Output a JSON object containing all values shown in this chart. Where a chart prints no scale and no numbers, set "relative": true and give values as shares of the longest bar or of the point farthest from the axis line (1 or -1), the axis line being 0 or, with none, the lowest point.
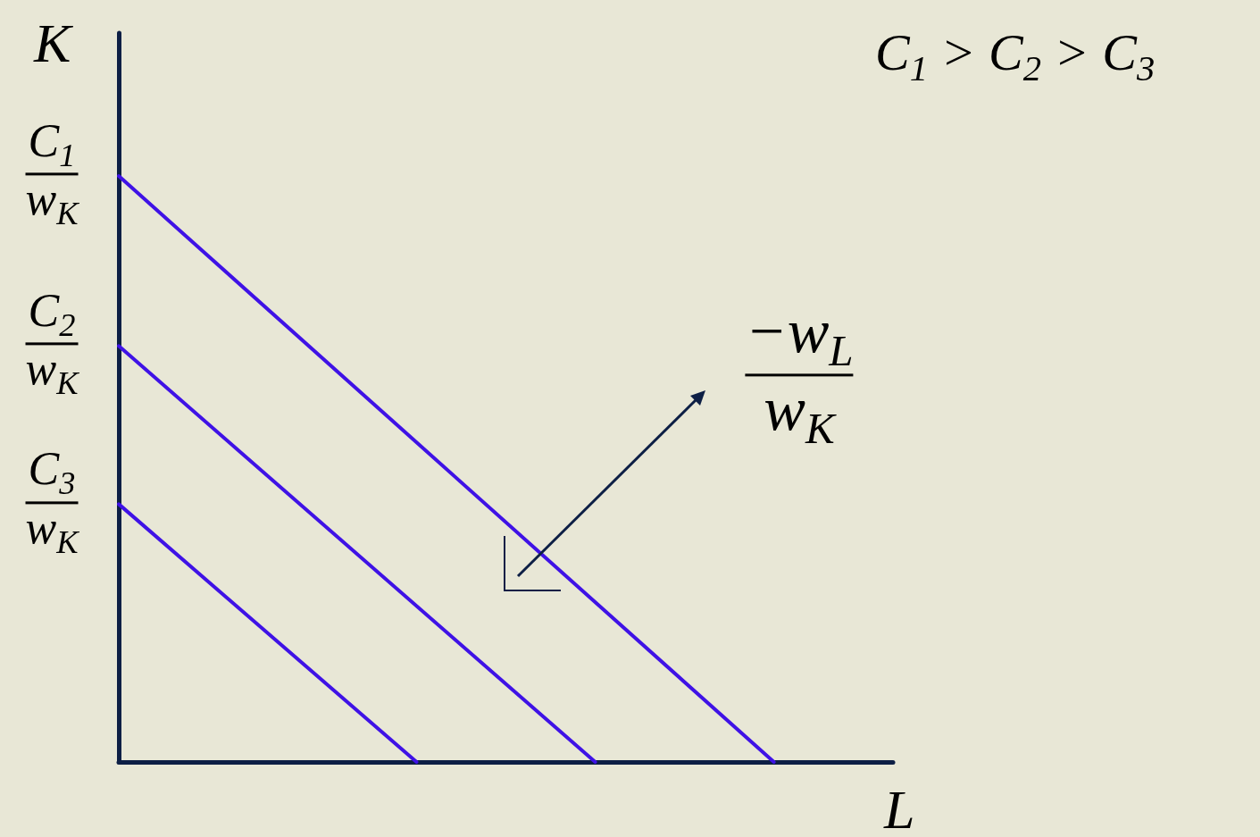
{
  "chart_data": {
    "type": "line",
    "relative": true,
    "xlabel": "L",
    "ylabel": "K",
    "grid": false,
    "marker": "none",
    "line_style": "solid",
    "categories": [
      null,
      null,
      null,
      null,
      null,
      null,
      null,
      null,
      null,
      null,
      null,
      null,
      null,
      null
    ],
    "series": [
      {
        "color": "#3f12e6",
        "values": [
          1,
          null,
          null,
          null,
          null,
          null,
          null,
          null,
          null,
          null,
          null,
          0,
          null,
          null
        ]
      },
      {
        "color": "#3f12e6",
        "values": [
          0.71,
          null,
          null,
          null,
          null,
          null,
          null,
          null,
          0,
          null,
          null,
          null,
          null,
          null
        ]
      },
      {
        "color": "#3f12e6",
        "values": [
          0.44,
          null,
          null,
          null,
          null,
          0,
          null,
          null,
          null,
          null,
          null,
          null,
          null,
          null
        ]
      }
    ],
    "annotations": [
      "C$_{1}$\nw$_{K}$",
      "C$_{2}$\nw$_{K}$",
      "C$_{3}$\nw$_{K}$",
      "−w$_{L}$\nw$_{K}$",
      "C$_{1}$ > C$_{2}$ > C$_{3}$"
    ]
  }
}
